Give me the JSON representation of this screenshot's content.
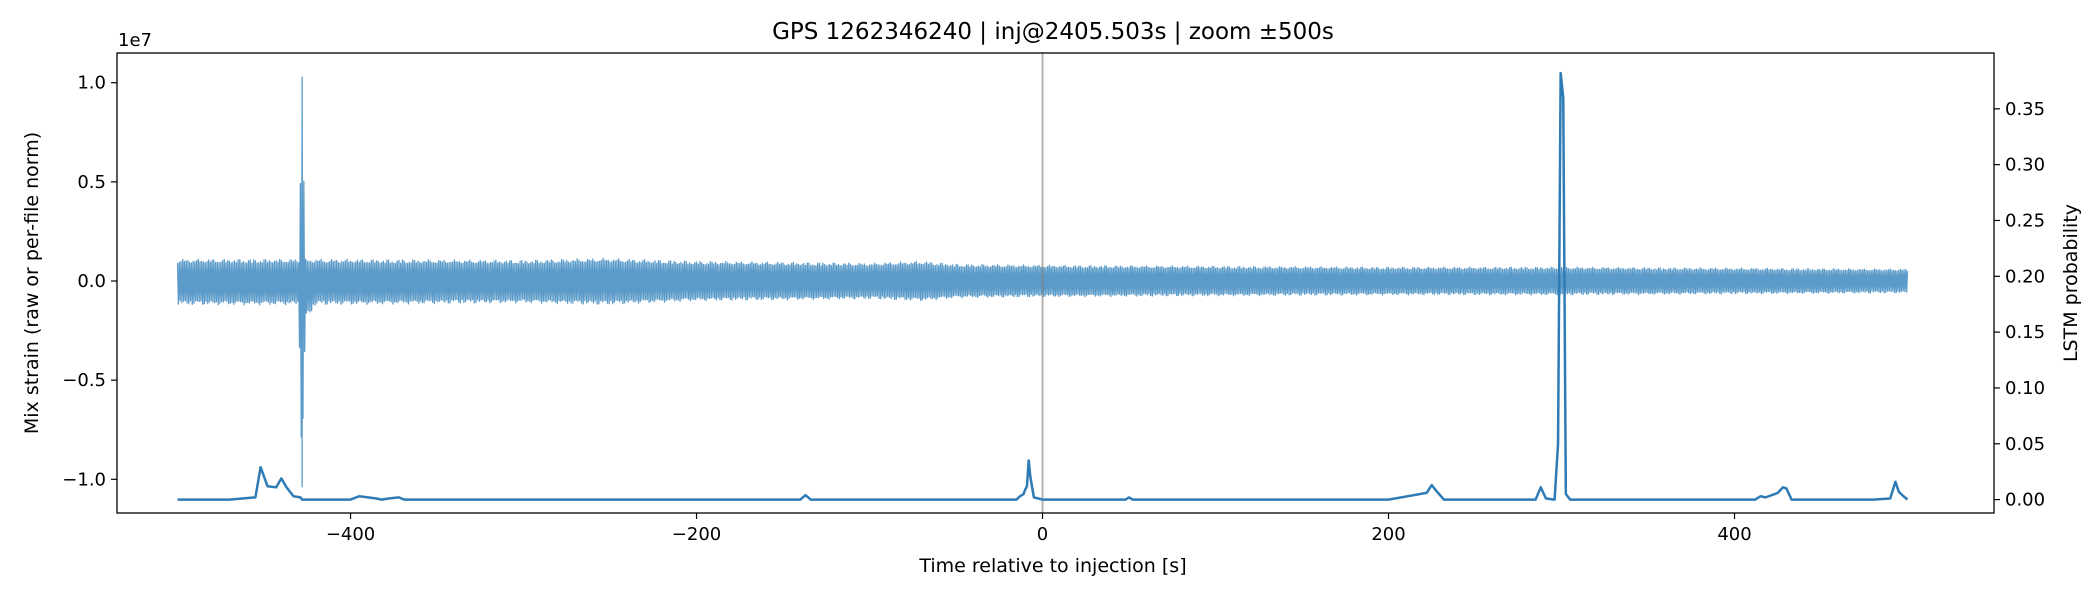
{
  "chart_data": {
    "type": "line",
    "title": "GPS 1262346240 | inj@2405.503s | zoom ±500s",
    "xlabel": "Time relative to injection [s]",
    "ylabel_left": "Mix strain (raw or per-file norm)",
    "ylabel_right": "LSTM probability",
    "y_left_offset_text": "1e7",
    "xlim": [
      -535,
      550
    ],
    "ylim_left": [
      -1.17,
      1.15
    ],
    "ylim_right": [
      -0.012,
      0.4
    ],
    "x_ticks": [
      -400,
      -200,
      0,
      200,
      400
    ],
    "x_tick_labels": [
      "−400",
      "−200",
      "0",
      "200",
      "400"
    ],
    "y_left_ticks": [
      1.0,
      0.5,
      0.0,
      -0.5,
      -1.0
    ],
    "y_left_tick_labels": [
      "1.0",
      "0.5",
      "0.0",
      "−0.5",
      "−1.0"
    ],
    "y_right_ticks": [
      0.35,
      0.3,
      0.25,
      0.2,
      0.15,
      0.1,
      0.05,
      0.0
    ],
    "y_right_tick_labels": [
      "0.35",
      "0.30",
      "0.25",
      "0.20",
      "0.15",
      "0.10",
      "0.05",
      "0.00"
    ],
    "injection_marker_x": 0,
    "grid": false,
    "series": [
      {
        "axis": "left",
        "color": "#5b9bc9",
        "style": "dense-oscillation-band",
        "x": [
          -500,
          -430,
          -428,
          -426,
          -420,
          -300,
          -254,
          -200,
          -100,
          -70,
          -50,
          0,
          100,
          200,
          300,
          400,
          500
        ],
        "upper": [
          0.11,
          0.11,
          1.03,
          0.11,
          0.11,
          0.105,
          0.115,
          0.1,
          0.09,
          0.1,
          0.085,
          0.08,
          0.075,
          0.07,
          0.07,
          0.065,
          0.06
        ],
        "lower": [
          -0.12,
          -0.12,
          -1.04,
          -0.2,
          -0.12,
          -0.11,
          -0.12,
          -0.1,
          -0.09,
          -0.1,
          -0.085,
          -0.08,
          -0.075,
          -0.07,
          -0.07,
          -0.065,
          -0.06
        ]
      },
      {
        "axis": "right",
        "color": "#2f7bb5",
        "x": [
          -500,
          -470,
          -455,
          -452,
          -448,
          -443,
          -440,
          -437,
          -433,
          -429,
          -428,
          -426,
          -424,
          -420,
          -400,
          -395,
          -390,
          -385,
          -382,
          -378,
          -372,
          -369,
          -366,
          -350,
          -200,
          -140,
          -137,
          -134,
          -100,
          -15,
          -13,
          -11,
          -10,
          -9,
          -8,
          -7,
          -5,
          0,
          48,
          50,
          52,
          100,
          200,
          222,
          225,
          227,
          232,
          250,
          285,
          288,
          291,
          296,
          298,
          299.5,
          301,
          302.5,
          305,
          400,
          412,
          415,
          418,
          425,
          428,
          430,
          433,
          480,
          490,
          493,
          495,
          497,
          500
        ],
        "y": [
          0.0,
          0.0,
          0.002,
          0.029,
          0.012,
          0.011,
          0.019,
          0.011,
          0.003,
          0.002,
          0.0,
          0.0,
          0.0,
          0.0,
          0.0,
          0.003,
          0.002,
          0.001,
          0.0,
          0.001,
          0.002,
          0.0,
          0.0,
          0.0,
          0.0,
          0.0,
          0.004,
          0.0,
          0.0,
          0.0,
          0.003,
          0.005,
          0.009,
          0.012,
          0.035,
          0.02,
          0.002,
          0.0,
          0.0,
          0.002,
          0.0,
          0.0,
          0.0,
          0.006,
          0.013,
          0.009,
          0.0,
          0.0,
          0.0,
          0.011,
          0.001,
          0.0,
          0.05,
          0.382,
          0.36,
          0.005,
          0.0,
          0.0,
          0.0,
          0.003,
          0.002,
          0.006,
          0.011,
          0.01,
          0.0,
          0.0,
          0.001,
          0.016,
          0.007,
          0.004,
          0.0
        ]
      }
    ]
  }
}
